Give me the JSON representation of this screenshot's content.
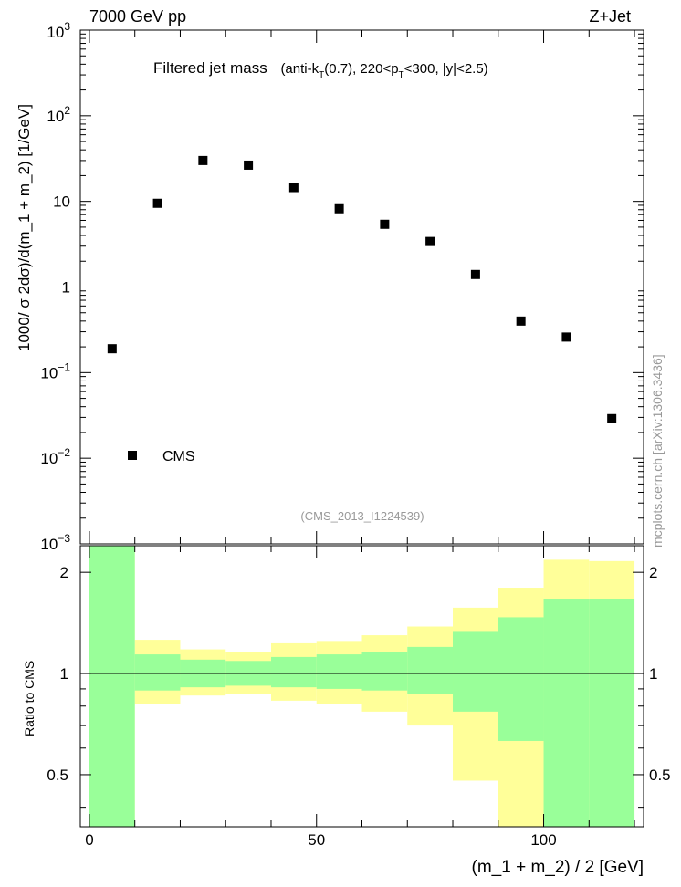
{
  "header": {
    "energy": "7000 GeV pp",
    "process": "Z+Jet"
  },
  "plot_title": {
    "main": "Filtered jet mass",
    "detail_a": "(anti-k",
    "detail_a_sub": "T",
    "detail_b": "(0.7), 220<p",
    "detail_b_sub": "T",
    "detail_c": "<300, |y|<2.5)"
  },
  "analysis_tag": "(CMS_2013_I1224539)",
  "side_label": "mcplots.cern.ch [arXiv:1306.3436]",
  "upper_ylabel": "1000/ σ 2dσ)/d(m_1 + m_2) [1/GeV]",
  "lower_ylabel": "Ratio to CMS",
  "xlabel": "(m_1 + m_2) / 2 [GeV]",
  "upper_ticks": [
    {
      "value": 0.001,
      "base": "10",
      "exp": "−3"
    },
    {
      "value": 0.01,
      "base": "10",
      "exp": "−2"
    },
    {
      "value": 0.1,
      "base": "10",
      "exp": "−1"
    },
    {
      "value": 1,
      "base": "1",
      "exp": ""
    },
    {
      "value": 10,
      "base": "10",
      "exp": ""
    },
    {
      "value": 100,
      "base": "10",
      "exp": "2"
    },
    {
      "value": 1000,
      "base": "10",
      "exp": "3"
    }
  ],
  "lower_ticks": [
    "0.5",
    "1",
    "2"
  ],
  "x_ticks": [
    "0",
    "50",
    "100"
  ],
  "legend": {
    "label": "CMS",
    "marker_color": "#000000"
  },
  "colors": {
    "marker": "#000000",
    "band_inner": "#99ff99",
    "band_outer": "#ffff99",
    "ref_line": "#000000",
    "tag_text": "#999999"
  },
  "chart_data": {
    "type": "scatter",
    "title": "Filtered jet mass",
    "xlabel": "(m_1 + m_2) / 2 [GeV]",
    "ylabel": "1000/ σ 2dσ)/d(m_1 + m_2) [1/GeV]",
    "xlim": [
      -2,
      122
    ],
    "ylim": [
      0.001,
      1000
    ],
    "yscale": "log",
    "series": [
      {
        "name": "CMS",
        "x": [
          5,
          15,
          25,
          35,
          45,
          55,
          65,
          75,
          85,
          95,
          105,
          115
        ],
        "values": [
          0.19,
          9.5,
          30,
          26.5,
          14.5,
          8.2,
          5.4,
          3.4,
          1.4,
          0.4,
          0.26,
          0.029
        ]
      }
    ],
    "ratio": {
      "ylabel": "Ratio to CMS",
      "ylim": [
        0.35,
        2.4
      ],
      "yscale": "log",
      "bin_edges": [
        0,
        10,
        20,
        30,
        40,
        50,
        60,
        70,
        80,
        90,
        100,
        110,
        120
      ],
      "inner_band_low": [
        0.35,
        0.89,
        0.91,
        0.92,
        0.91,
        0.9,
        0.89,
        0.87,
        0.77,
        0.63,
        0.35,
        0.35
      ],
      "inner_band_high": [
        2.4,
        1.14,
        1.1,
        1.09,
        1.12,
        1.14,
        1.16,
        1.2,
        1.33,
        1.47,
        1.67,
        1.67
      ],
      "outer_band_low": [
        0.35,
        0.81,
        0.86,
        0.87,
        0.83,
        0.81,
        0.77,
        0.7,
        0.48,
        0.35,
        0.35,
        0.35
      ],
      "outer_band_high": [
        2.4,
        1.26,
        1.18,
        1.16,
        1.23,
        1.25,
        1.3,
        1.38,
        1.57,
        1.8,
        2.18,
        2.16
      ],
      "reference": 1
    }
  }
}
